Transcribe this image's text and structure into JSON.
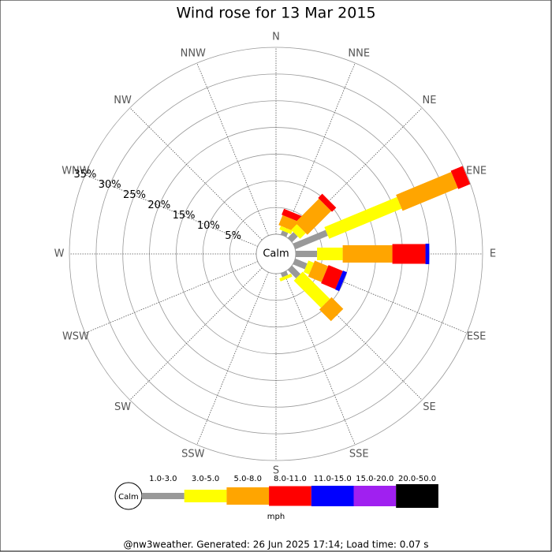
{
  "chart_data": {
    "type": "wind_rose",
    "title": "Wind rose for 13 Mar 2015",
    "calm_label": "Calm",
    "directions": [
      "N",
      "NNE",
      "NE",
      "ENE",
      "E",
      "ESE",
      "SE",
      "SSE",
      "S",
      "SSW",
      "SW",
      "WSW",
      "W",
      "WNW",
      "NW",
      "NNW"
    ],
    "rlim": [
      0,
      35
    ],
    "rticks": [
      {
        "value": 5,
        "label": "5%"
      },
      {
        "value": 10,
        "label": "10%"
      },
      {
        "value": 15,
        "label": "15%"
      },
      {
        "value": 20,
        "label": "20%"
      },
      {
        "value": 25,
        "label": "25%"
      },
      {
        "value": 30,
        "label": "30%"
      },
      {
        "value": 35,
        "label": "35%"
      }
    ],
    "series": [
      {
        "name": "1.0-3.0",
        "color": "#999999",
        "values": [
          0,
          0.8,
          1.5,
          6.6,
          4.0,
          2.4,
          2.2,
          0.8,
          0,
          0,
          0,
          0,
          0,
          0,
          0,
          0
        ]
      },
      {
        "name": "3.0-5.0",
        "color": "#ffff00",
        "values": [
          0,
          0.7,
          1.5,
          14.7,
          4.8,
          1.1,
          7.2,
          0.6,
          0,
          0,
          0,
          0,
          0,
          0,
          0,
          0
        ]
      },
      {
        "name": "5.0-8.0",
        "color": "#ffa500",
        "values": [
          0,
          2.0,
          6.3,
          11.2,
          9.3,
          2.7,
          3.1,
          0,
          0,
          0,
          0,
          0,
          0,
          0,
          0,
          0
        ]
      },
      {
        "name": "8.0-11.0",
        "color": "#ff0000",
        "values": [
          0,
          1.2,
          1.1,
          2.4,
          6.2,
          2.9,
          0,
          0,
          0,
          0,
          0,
          0,
          0,
          0,
          0,
          0
        ]
      },
      {
        "name": "11.0-15.0",
        "color": "#0000ff",
        "values": [
          0,
          0,
          0,
          0,
          0.7,
          0.8,
          0,
          0,
          0,
          0,
          0,
          0,
          0,
          0,
          0,
          0
        ]
      },
      {
        "name": "15.0-20.0",
        "color": "#a020f0",
        "values": [
          0,
          0,
          0,
          0,
          0,
          0,
          0,
          0,
          0,
          0,
          0,
          0,
          0,
          0,
          0,
          0
        ]
      },
      {
        "name": "20.0-50.0",
        "color": "#000000",
        "values": [
          0,
          0,
          0,
          0,
          0,
          0,
          0,
          0,
          0,
          0,
          0,
          0,
          0,
          0,
          0,
          0
        ]
      }
    ],
    "legend_unit": "mph",
    "footer": "@nw3weather. Generated: 26 Jun 2025 17:14; Load time: 0.07 s"
  }
}
